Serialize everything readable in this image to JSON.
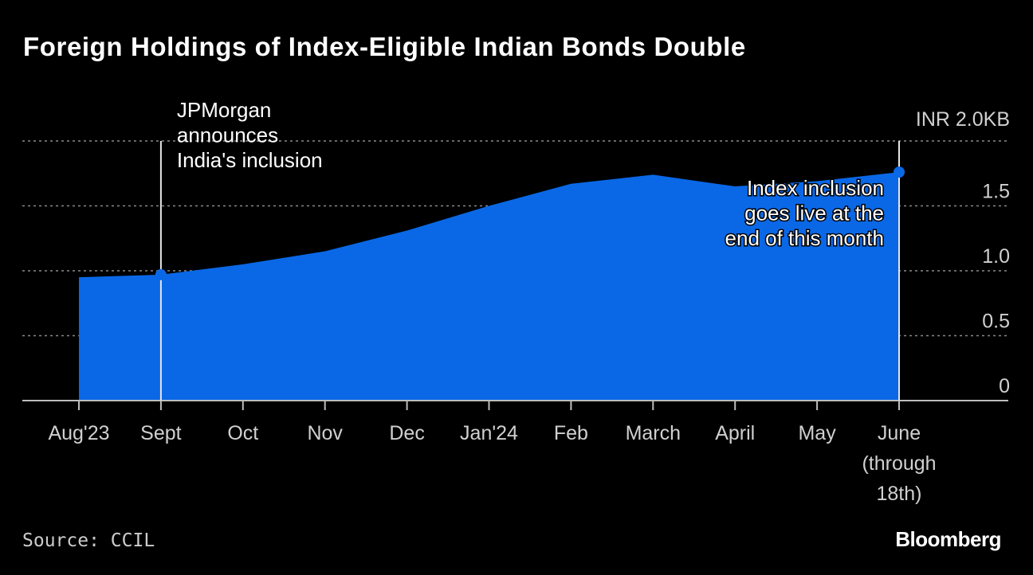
{
  "title": "Foreign Holdings of Index-Eligible Indian Bonds Double",
  "source": "Source: CCIL",
  "brand": "Bloomberg",
  "colors": {
    "area": "#0a68e6",
    "background": "#000000",
    "grid": "#777777"
  },
  "chart_data": {
    "type": "area",
    "title": "Foreign Holdings of Index-Eligible Indian Bonds Double",
    "categories": [
      "Aug'23",
      "Sept",
      "Oct",
      "Nov",
      "Dec",
      "Jan'24",
      "Feb",
      "March",
      "April",
      "May",
      "June (through 18th)"
    ],
    "category_lines": [
      [
        "Aug'23"
      ],
      [
        "Sept"
      ],
      [
        "Oct"
      ],
      [
        "Nov"
      ],
      [
        "Dec"
      ],
      [
        "Jan'24"
      ],
      [
        "Feb"
      ],
      [
        "March"
      ],
      [
        "April"
      ],
      [
        "May"
      ],
      [
        "June",
        "(through",
        "18th)"
      ]
    ],
    "values": [
      0.95,
      0.97,
      1.05,
      1.15,
      1.31,
      1.5,
      1.67,
      1.74,
      1.65,
      1.69,
      1.76
    ],
    "unit_label": "INR 2.0KB",
    "ytick_labels": [
      "0",
      "0.5",
      "1.0",
      "1.5"
    ],
    "yticks": [
      0,
      0.5,
      1.0,
      1.5
    ],
    "ylim": [
      0,
      2.0
    ],
    "y_axis_side": "right",
    "grid": true,
    "annotations": [
      {
        "category": "Sept",
        "lines": [
          "JPMorgan",
          "announces",
          "India's inclusion"
        ]
      },
      {
        "category": "June (through 18th)",
        "lines": [
          "Index inclusion",
          "goes live at the",
          "end of this month"
        ]
      }
    ]
  }
}
